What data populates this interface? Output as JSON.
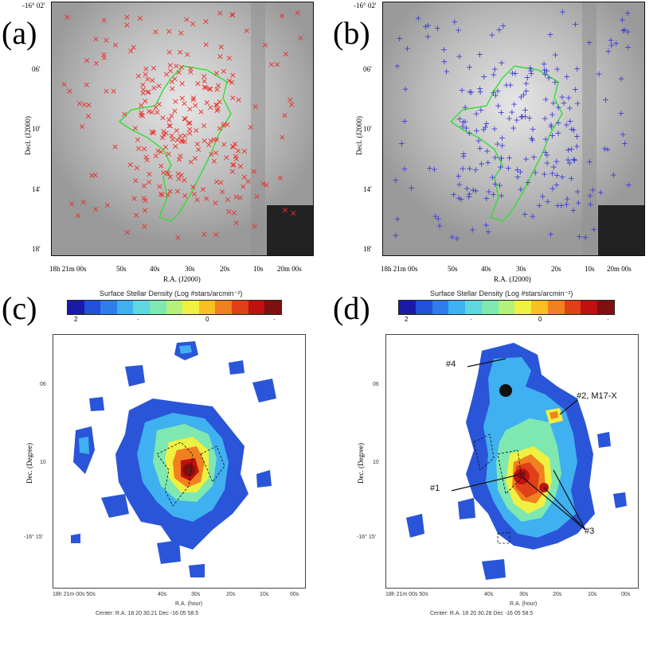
{
  "panels": {
    "a": {
      "label": "(a)",
      "marker": "×",
      "marker_color": "#e8302a"
    },
    "b": {
      "label": "(b)",
      "marker": "+",
      "marker_color": "#3f3fd8"
    },
    "c": {
      "label": "(c)"
    },
    "d": {
      "label": "(d)"
    }
  },
  "optical": {
    "dec_top": "-16° 02'",
    "dec_ticks": [
      "06'",
      "10'",
      "14'",
      "18'"
    ],
    "dec_title": "Decl. (J2000)",
    "ra_ticks": [
      "18h 21m 00s",
      "50s",
      "40s",
      "30s",
      "20s",
      "10s",
      "20m 00s"
    ],
    "ra_title": "R.A. (J2000)"
  },
  "density_maps": {
    "colorbar_title": "Surface Stellar Density (Log #stars/arcmin⁻²)",
    "colorbar_ticks": [
      "2",
      "·",
      "0",
      "·"
    ],
    "colorbar_colors": [
      "#1a1aa8",
      "#2250d8",
      "#2f7de8",
      "#3fb0f0",
      "#5fd6e0",
      "#7ee8b0",
      "#b4f07a",
      "#f0f040",
      "#f8c020",
      "#f08020",
      "#e04018",
      "#c01010",
      "#801010"
    ],
    "dec_title": "Dec. (Degree)",
    "dec_ticks": [
      "06",
      "10",
      "-16° 15'"
    ],
    "ra_ticks": [
      "18h 21m 00s 50s",
      "40s",
      "30s",
      "20s",
      "10s",
      "00s"
    ],
    "ra_title": "R.A. (hour)",
    "c_center": "Center: R.A. 18 20 30.21   Dec -16 05 58.5",
    "d_center": "Center: R.A. 18 20 30.28   Dec -16 05 58.5"
  },
  "annotations": {
    "n1": "#1",
    "n2": "#2, M17-X",
    "n3": "#3",
    "n4": "#4"
  }
}
